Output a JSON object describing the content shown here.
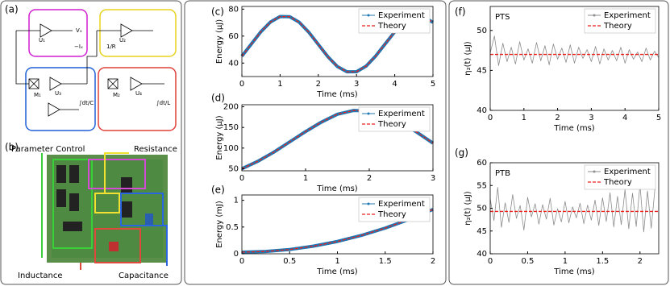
{
  "diagram": {
    "label": "(a)",
    "symbols": [
      "M₁",
      "M₂",
      "U₁",
      "U₂",
      "U₃",
      "U₄",
      "Vₓ",
      "−Iₓ",
      "1/R",
      "∫dt/L",
      "∫dt/C"
    ]
  },
  "photo": {
    "label": "(b)",
    "annotations": [
      "Parameter Control",
      "Resistance",
      "Inductance",
      "Capacitance"
    ]
  },
  "chart_data": [
    {
      "type": "line",
      "panel": "(c)",
      "xlabel": "Time (ms)",
      "ylabel": "Energy (μJ)",
      "xlim": [
        0,
        5
      ],
      "ylim": [
        30,
        82
      ],
      "xticks": [
        0,
        1,
        2,
        3,
        4,
        5
      ],
      "yticks": [
        40,
        60,
        80
      ],
      "legend": "upper right",
      "x": [
        0,
        0.25,
        0.5,
        0.75,
        1,
        1.25,
        1.5,
        1.75,
        2,
        2.25,
        2.5,
        2.75,
        3,
        3.25,
        3.5,
        3.75,
        4,
        4.25,
        4.5,
        4.75,
        5
      ],
      "series": [
        {
          "name": "Experiment",
          "color": "#1f77b4",
          "linestyle": "solid",
          "values": [
            45.1,
            54.2,
            63.3,
            70.5,
            74.5,
            74.4,
            70.3,
            62.9,
            53.8,
            44.7,
            37.4,
            33.5,
            33.6,
            37.7,
            45.2,
            54.2,
            63.2,
            70.5,
            74.5,
            74.4,
            70.2
          ]
        },
        {
          "name": "Theory",
          "color": "#e8211d",
          "linestyle": "dashed",
          "values": [
            45.1,
            54.2,
            63.3,
            70.5,
            74.5,
            74.4,
            70.3,
            62.9,
            53.8,
            44.7,
            37.4,
            33.5,
            33.6,
            37.7,
            45.2,
            54.2,
            63.2,
            70.5,
            74.5,
            74.4,
            70.2
          ]
        }
      ]
    },
    {
      "type": "line",
      "panel": "(d)",
      "xlabel": "Time (ms)",
      "ylabel": "Energy (μJ)",
      "xlim": [
        0,
        3
      ],
      "ylim": [
        45,
        205
      ],
      "xticks": [
        0,
        1,
        2,
        3
      ],
      "yticks": [
        50,
        100,
        150,
        200
      ],
      "legend": "upper right",
      "x": [
        0,
        0.25,
        0.5,
        0.75,
        1,
        1.25,
        1.5,
        1.75,
        2,
        2.25,
        2.5,
        2.75,
        3
      ],
      "series": [
        {
          "name": "Experiment",
          "color": "#1f77b4",
          "linestyle": "solid",
          "values": [
            50,
            68,
            90,
            115,
            140,
            163,
            182,
            191,
            190,
            180,
            162,
            138,
            112
          ]
        },
        {
          "name": "Theory",
          "color": "#e8211d",
          "linestyle": "dashed",
          "values": [
            50,
            68,
            90,
            115,
            140,
            163,
            182,
            191,
            190,
            180,
            162,
            138,
            112
          ]
        }
      ]
    },
    {
      "type": "line",
      "panel": "(e)",
      "xlabel": "Time (ms)",
      "ylabel": "Energy (mJ)",
      "xlim": [
        0,
        2
      ],
      "ylim": [
        0,
        1.1
      ],
      "xticks": [
        0,
        0.5,
        1,
        1.5,
        2
      ],
      "yticks": [
        0,
        0.5,
        1
      ],
      "legend": "upper right",
      "x": [
        0,
        0.25,
        0.5,
        0.75,
        1,
        1.25,
        1.5,
        1.75,
        2
      ],
      "series": [
        {
          "name": "Experiment",
          "color": "#1f77b4",
          "linestyle": "solid",
          "values": [
            0.03,
            0.043,
            0.08,
            0.143,
            0.23,
            0.343,
            0.48,
            0.643,
            0.83
          ]
        },
        {
          "name": "Theory",
          "color": "#e8211d",
          "linestyle": "dashed",
          "values": [
            0.03,
            0.043,
            0.08,
            0.143,
            0.23,
            0.343,
            0.48,
            0.643,
            0.83
          ]
        }
      ]
    },
    {
      "type": "line",
      "panel": "(f)",
      "annotation": "PTS",
      "xlabel": "Time (ms)",
      "ylabel": "η₂(t) (μJ)",
      "xlim": [
        0,
        5
      ],
      "ylim": [
        40,
        53
      ],
      "xticks": [
        0,
        1,
        2,
        3,
        4,
        5
      ],
      "yticks": [
        40,
        45,
        50
      ],
      "legend": "upper right",
      "series": [
        {
          "name": "Experiment",
          "color": "#8c8c8c",
          "linestyle": "solid",
          "x": [
            0,
            0.125,
            0.25,
            0.375,
            0.5,
            0.625,
            0.75,
            0.875,
            1,
            1.125,
            1.25,
            1.375,
            1.5,
            1.625,
            1.75,
            1.875,
            2,
            2.125,
            2.25,
            2.375,
            2.5,
            2.625,
            2.75,
            2.875,
            3,
            3.125,
            3.25,
            3.375,
            3.5,
            3.625,
            3.75,
            3.875,
            4,
            4.125,
            4.25,
            4.375,
            4.5,
            4.625,
            4.75,
            4.875,
            5
          ],
          "values": [
            47.2,
            49.3,
            45.6,
            48.4,
            46.1,
            47.9,
            45.8,
            48.6,
            46.3,
            47.7,
            45.9,
            48.5,
            46.2,
            48.1,
            45.7,
            48.3,
            46.4,
            47.8,
            46.0,
            48.2,
            45.9,
            47.9,
            46.5,
            47.6,
            46.1,
            48.0,
            45.8,
            47.7,
            46.3,
            47.5,
            46.2,
            47.9,
            45.9,
            47.6,
            46.4,
            47.3,
            46.1,
            47.8,
            46.3,
            47.4,
            46.6
          ]
        },
        {
          "name": "Theory",
          "color": "#e8211d",
          "linestyle": "dashed",
          "x": [
            0,
            5
          ],
          "values": [
            47,
            47
          ]
        }
      ]
    },
    {
      "type": "line",
      "panel": "(g)",
      "annotation": "PTB",
      "xlabel": "Time (ms)",
      "ylabel": "η₂(t) (μJ)",
      "xlim": [
        0,
        2.25
      ],
      "ylim": [
        40,
        60
      ],
      "xticks": [
        0,
        0.5,
        1,
        1.5,
        2
      ],
      "yticks": [
        40,
        45,
        50,
        55,
        60
      ],
      "legend": "upper right",
      "series": [
        {
          "name": "Experiment",
          "color": "#8c8c8c",
          "linestyle": "solid",
          "x": [
            0,
            0.05,
            0.1,
            0.15,
            0.2,
            0.25,
            0.3,
            0.35,
            0.4,
            0.45,
            0.5,
            0.55,
            0.6,
            0.65,
            0.7,
            0.75,
            0.8,
            0.85,
            0.9,
            0.95,
            1,
            1.05,
            1.1,
            1.15,
            1.2,
            1.25,
            1.3,
            1.35,
            1.4,
            1.45,
            1.5,
            1.55,
            1.6,
            1.65,
            1.7,
            1.75,
            1.8,
            1.85,
            1.9,
            1.95,
            2,
            2.05,
            2.1,
            2.15,
            2.2
          ],
          "values": [
            52.1,
            47.3,
            54.6,
            45.8,
            51.2,
            46.9,
            53.0,
            47.8,
            50.6,
            45.2,
            52.4,
            48.1,
            51.0,
            46.5,
            50.8,
            47.6,
            52.2,
            46.3,
            49.9,
            47.0,
            51.5,
            46.8,
            50.3,
            47.9,
            51.1,
            46.6,
            50.7,
            47.4,
            51.8,
            46.2,
            52.3,
            47.1,
            53.4,
            45.9,
            52.6,
            46.4,
            54.1,
            45.5,
            53.3,
            46.0,
            55.2,
            44.8,
            53.8,
            45.6,
            54.4
          ]
        },
        {
          "name": "Theory",
          "color": "#e8211d",
          "linestyle": "dashed",
          "x": [
            0,
            2.25
          ],
          "values": [
            49.3,
            49.3
          ]
        }
      ]
    }
  ]
}
